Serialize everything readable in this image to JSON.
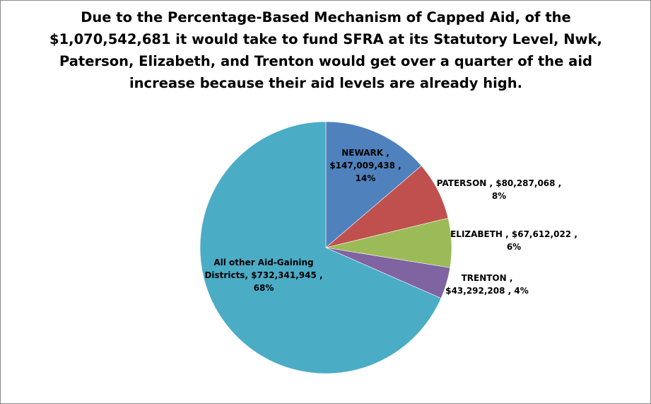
{
  "chart_data": {
    "type": "pie",
    "title_lines": [
      "Due to the Percentage-Based Mechanism of Capped Aid, of the",
      "$1,070,542,681  it would take to fund SFRA at its Statutory Level, Nwk,",
      "Paterson, Elizabeth, and Trenton would get over a quarter of the aid",
      "increase because their aid levels are already high."
    ],
    "slices": [
      {
        "name": "NEWARK",
        "value": 147009438,
        "value_label": "$147,009,438",
        "percent": "14%",
        "color": "#4f81bd",
        "label_lines": [
          "NEWARK ,",
          "$147,009,438 ,",
          "14%"
        ]
      },
      {
        "name": "PATERSON",
        "value": 80287068,
        "value_label": "$80,287,068",
        "percent": "8%",
        "color": "#c0504d",
        "label_lines": [
          "PATERSON , $80,287,068 ,",
          "8%"
        ]
      },
      {
        "name": "ELIZABETH",
        "value": 67612022,
        "value_label": "$67,612,022",
        "percent": "6%",
        "color": "#9bbb59",
        "label_lines": [
          "ELIZABETH , $67,612,022 ,",
          "6%"
        ]
      },
      {
        "name": "TRENTON",
        "value": 43292208,
        "value_label": "$43,292,208",
        "percent": "4%",
        "color": "#8064a2",
        "label_lines": [
          "TRENTON ,",
          "$43,292,208 , 4%"
        ]
      },
      {
        "name": "All other Aid-Gaining Districts",
        "value": 732341945,
        "value_label": "$732,341,945",
        "percent": "68%",
        "color": "#4bacc6",
        "label_lines": [
          "All other Aid-Gaining",
          "Districts, $732,341,945 ,",
          "68%"
        ]
      }
    ],
    "start_angle": "12 o'clock",
    "direction": "clockwise",
    "legend": "none",
    "label_position": "inside/adjacent"
  }
}
